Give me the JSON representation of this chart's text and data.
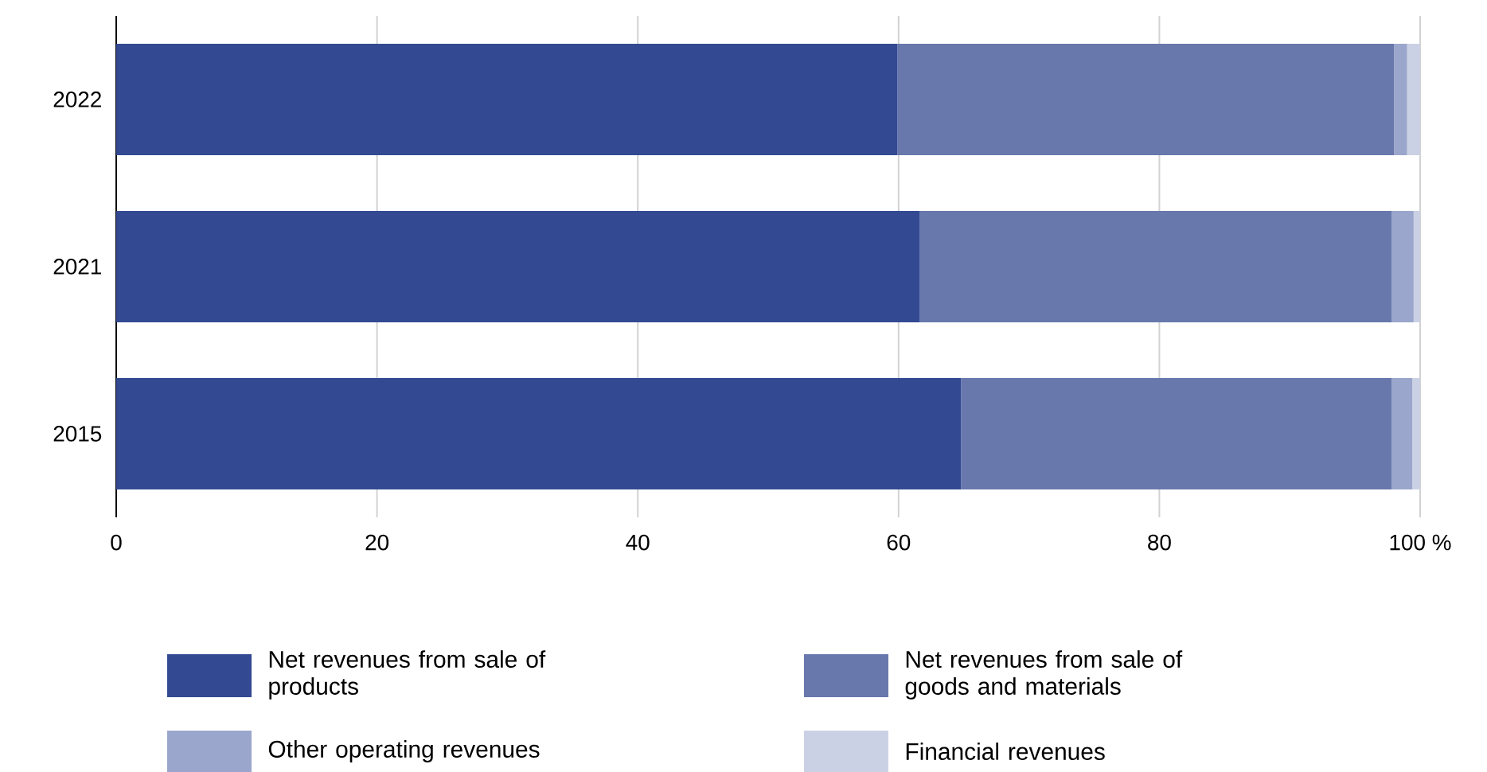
{
  "chart_data": {
    "type": "bar",
    "orientation": "horizontal",
    "stacked": true,
    "categories": [
      "2022",
      "2021",
      "2015"
    ],
    "series": [
      {
        "name": "Net revenues from sale of products",
        "color": "#334a93",
        "values": [
          59.9,
          61.6,
          64.8
        ]
      },
      {
        "name": "Net revenues from sale of goods and materials",
        "color": "#6878ad",
        "values": [
          38.1,
          36.2,
          33.0
        ]
      },
      {
        "name": "Other operating revenues",
        "color": "#9aa6cb",
        "values": [
          1.0,
          1.7,
          1.6
        ]
      },
      {
        "name": "Financial revenues",
        "color": "#cbd1e5",
        "values": [
          1.0,
          0.5,
          0.6
        ]
      }
    ],
    "xlim": [
      0,
      100
    ],
    "xticks": [
      0,
      20,
      40,
      60,
      80,
      {
        "value": 100,
        "label": "100 %"
      }
    ],
    "grid": "x",
    "legend": "bottom"
  }
}
